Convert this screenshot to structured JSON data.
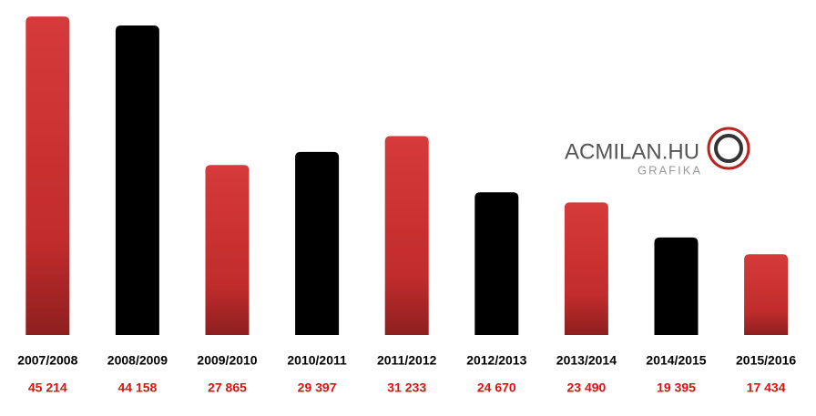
{
  "chart_data": {
    "type": "bar",
    "categories": [
      "2007/2008",
      "2008/2009",
      "2009/2010",
      "2010/2011",
      "2011/2012",
      "2012/2013",
      "2013/2014",
      "2014/2015",
      "2015/2016"
    ],
    "values": [
      45214,
      44158,
      27865,
      29397,
      31233,
      24670,
      23490,
      19395,
      17434
    ],
    "value_labels": [
      "45 214",
      "44 158",
      "27 865",
      "29 397",
      "31 233",
      "24 670",
      "23 490",
      "19 395",
      "17 434"
    ],
    "colors": [
      "#c62f2f",
      "#000000",
      "#c62f2f",
      "#000000",
      "#c62f2f",
      "#000000",
      "#c62f2f",
      "#000000",
      "#c62f2f"
    ],
    "value_label_color": "#e01010",
    "ylim": [
      8000,
      46500
    ]
  },
  "watermark": {
    "title": "ACMILAN.HU",
    "subtitle": "GRAFIKA"
  }
}
